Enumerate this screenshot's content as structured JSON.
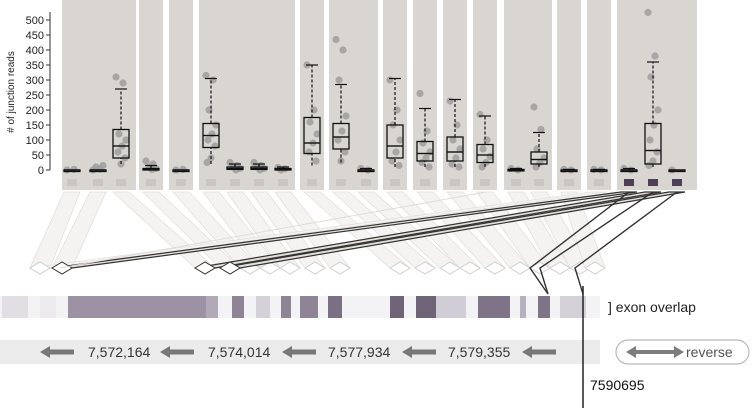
{
  "chart_data": {
    "type": "boxplot",
    "ylabel": "# of junction reads",
    "ylim": [
      0,
      525
    ],
    "yticks": [
      0,
      50,
      100,
      150,
      200,
      250,
      300,
      350,
      400,
      450,
      500
    ],
    "series_color": "#9a9a9a",
    "junctions": [
      {
        "min": 0,
        "q1": 0,
        "median": 0,
        "q3": 0,
        "max": 0,
        "points": [
          0,
          2
        ],
        "highlighted": false
      },
      {
        "min": 0,
        "q1": 0,
        "median": 0,
        "q3": 0,
        "max": 0,
        "points": [
          0,
          3,
          10,
          15
        ],
        "highlighted": false
      },
      {
        "min": 20,
        "q1": 40,
        "median": 80,
        "q3": 135,
        "max": 270,
        "points": [
          310,
          290,
          120,
          100,
          80,
          60,
          40,
          20
        ],
        "highlighted": false
      },
      {
        "min": 0,
        "q1": 0,
        "median": 3,
        "q3": 5,
        "max": 15,
        "points": [
          30,
          20,
          10,
          5,
          2
        ],
        "highlighted": false
      },
      {
        "min": 0,
        "q1": 0,
        "median": 0,
        "q3": 0,
        "max": 0,
        "points": [
          0,
          2
        ],
        "highlighted": false
      },
      {
        "min": 20,
        "q1": 75,
        "median": 115,
        "q3": 155,
        "max": 305,
        "points": [
          315,
          300,
          200,
          150,
          120,
          100,
          80,
          40,
          25
        ],
        "highlighted": false
      },
      {
        "min": 0,
        "q1": 2,
        "median": 5,
        "q3": 10,
        "max": 20,
        "points": [
          25,
          15,
          10,
          5,
          0
        ],
        "highlighted": false
      },
      {
        "min": 0,
        "q1": 2,
        "median": 5,
        "q3": 10,
        "max": 20,
        "points": [
          25,
          15,
          10,
          5,
          0
        ],
        "highlighted": false
      },
      {
        "min": 0,
        "q1": 0,
        "median": 2,
        "q3": 5,
        "max": 10,
        "points": [
          8,
          4,
          0
        ],
        "highlighted": false
      },
      {
        "min": 15,
        "q1": 55,
        "median": 90,
        "q3": 175,
        "max": 350,
        "points": [
          350,
          200,
          160,
          120,
          90,
          60,
          30
        ],
        "highlighted": false
      },
      {
        "min": 25,
        "q1": 70,
        "median": 110,
        "q3": 155,
        "max": 285,
        "points": [
          435,
          400,
          300,
          180,
          130,
          100,
          60,
          30
        ],
        "highlighted": false
      },
      {
        "min": 0,
        "q1": 0,
        "median": 0,
        "q3": 0,
        "max": 5,
        "points": [
          5,
          0
        ],
        "highlighted": false
      },
      {
        "min": 10,
        "q1": 40,
        "median": 80,
        "q3": 150,
        "max": 305,
        "points": [
          300,
          200,
          150,
          100,
          60,
          30,
          15
        ],
        "highlighted": false
      },
      {
        "min": 10,
        "q1": 30,
        "median": 55,
        "q3": 95,
        "max": 205,
        "points": [
          255,
          130,
          90,
          60,
          40,
          25,
          10
        ],
        "highlighted": false
      },
      {
        "min": 10,
        "q1": 30,
        "median": 60,
        "q3": 110,
        "max": 235,
        "points": [
          230,
          150,
          100,
          70,
          40,
          20,
          10
        ],
        "highlighted": false
      },
      {
        "min": 10,
        "q1": 25,
        "median": 50,
        "q3": 85,
        "max": 180,
        "points": [
          185,
          100,
          70,
          45,
          25,
          10
        ],
        "highlighted": false
      },
      {
        "min": 0,
        "q1": 0,
        "median": 0,
        "q3": 2,
        "max": 5,
        "points": [
          5,
          0
        ],
        "highlighted": false
      },
      {
        "min": 10,
        "q1": 20,
        "median": 35,
        "q3": 60,
        "max": 125,
        "points": [
          210,
          135,
          70,
          40,
          25,
          10
        ],
        "highlighted": false
      },
      {
        "min": 0,
        "q1": 0,
        "median": 0,
        "q3": 0,
        "max": 2,
        "points": [
          2,
          0
        ],
        "highlighted": false
      },
      {
        "min": 0,
        "q1": 0,
        "median": 0,
        "q3": 0,
        "max": 2,
        "points": [
          2,
          0
        ],
        "highlighted": false
      },
      {
        "min": 0,
        "q1": 0,
        "median": 0,
        "q3": 0,
        "max": 5,
        "points": [
          5,
          0
        ],
        "highlighted": true
      },
      {
        "min": 10,
        "q1": 20,
        "median": 65,
        "q3": 155,
        "max": 360,
        "points": [
          525,
          380,
          310,
          200,
          150,
          100,
          60,
          30,
          15
        ],
        "highlighted": true
      },
      {
        "min": 0,
        "q1": 0,
        "median": 0,
        "q3": 0,
        "max": 0,
        "points": [
          0
        ],
        "highlighted": true
      }
    ],
    "exon_track_label": "] exon overlap",
    "coordinates": [
      "7,572,164",
      "7,574,014",
      "7,577,934",
      "7,579,355"
    ],
    "marker_label": "7590695",
    "strand_button": "reverse"
  },
  "colors": {
    "panel": "#d9d6d2",
    "panel_highlight": "#d5d1cc",
    "exon_light": "#e6e4e9",
    "exon_mid": "#9c92a4",
    "exon_dark": "#6f6378",
    "accent_dark": "#4e3f57"
  }
}
